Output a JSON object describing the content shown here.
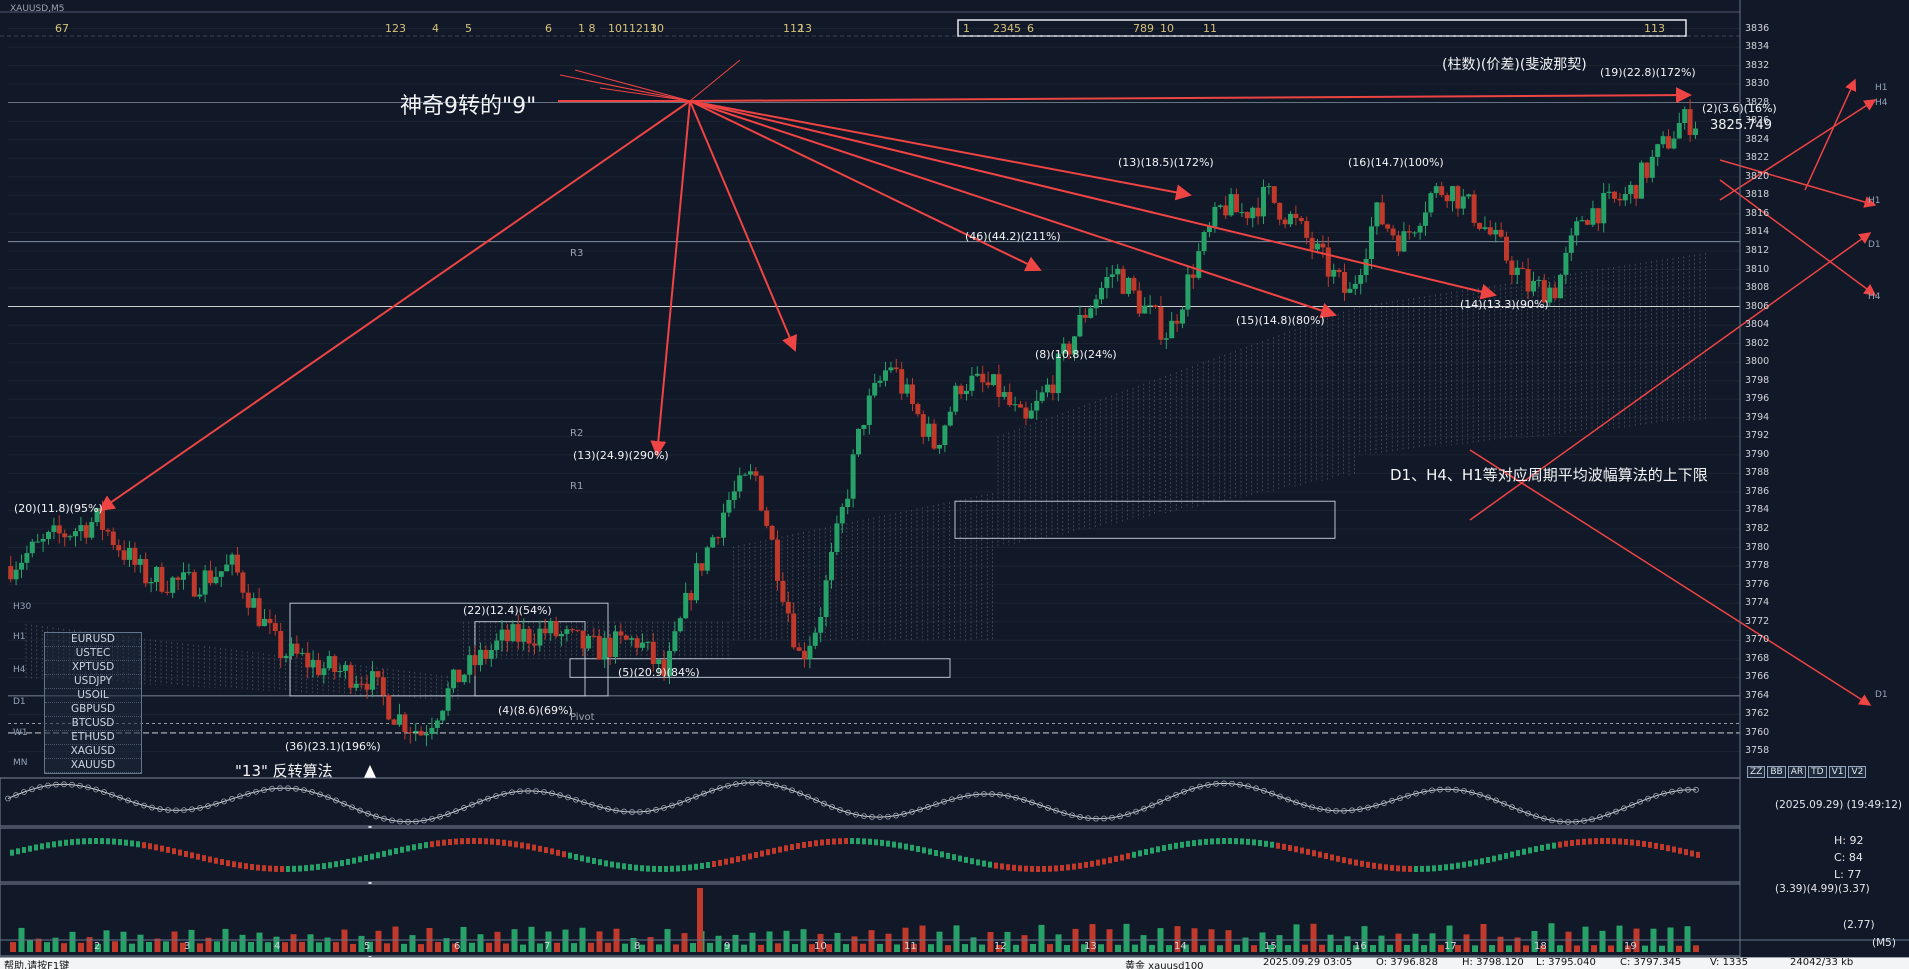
{
  "window": {
    "symbol": "XAUUSD,M5"
  },
  "top_numbers": [
    "67",
    "123",
    "4",
    "5",
    "6",
    "1 8",
    "1011213",
    "10",
    "112",
    "13",
    "1",
    "2345",
    "6",
    "789",
    "10",
    "11",
    "113"
  ],
  "annotations": {
    "magic9": "神奇9转的\"9\"",
    "header_label": "(柱数)(价差)(斐波那契)",
    "bands_label": "D1、H4、H1等对应周期平均波幅算法的上下限",
    "reversal13": "\"13\" 反转算法",
    "price_now": "3825.749",
    "wave_labels": [
      "(20)(11.8)(95%)",
      "(36)(23.1)(196%)",
      "(22)(12.4)(54%)",
      "(4)(8.6)(69%)",
      "(13)(24.9)(290%)",
      "(5)(20.9)(84%)",
      "(46)(44.2)(211%)",
      "(8)(10.8)(24%)",
      "(13)(18.5)(172%)",
      "(15)(14.8)(80%)",
      "(16)(14.7)(100%)",
      "(14)(13.3)(90%)",
      "(19)(22.8)(172%)",
      "(2)(3.6)(16%)"
    ],
    "pivot_labels": [
      "R3",
      "R2",
      "R1",
      "Pivot"
    ]
  },
  "right_axis": {
    "prices": [
      "3836",
      "3834",
      "3832",
      "3830",
      "3828",
      "3826",
      "3824",
      "3822",
      "3820",
      "3818",
      "3816",
      "3814",
      "3812",
      "3810",
      "3808",
      "3806",
      "3804",
      "3802",
      "3800",
      "3798",
      "3796",
      "3794",
      "3792",
      "3790",
      "3788",
      "3786",
      "3784",
      "3782",
      "3780",
      "3778",
      "3776",
      "3774",
      "3772",
      "3770",
      "3768",
      "3766",
      "3764",
      "3762",
      "3760",
      "3758"
    ],
    "period_labels": [
      "H1",
      "H4",
      "D1",
      "H1",
      "D1",
      "H4"
    ]
  },
  "left_axis": {
    "period_labels": [
      "H30",
      "H1",
      "H4",
      "D1",
      "W1",
      "MN"
    ]
  },
  "symbols": [
    "EURUSD",
    "USTEC",
    "XPTUSD",
    "USDJPY",
    "USOIL",
    "GBPUSD",
    "BTCUSD",
    "ETHUSD",
    "XAGUSD",
    "XAUUSD"
  ],
  "tf_buttons": [
    "ZZ",
    "BB",
    "AR",
    "TD",
    "V1",
    "V2"
  ],
  "indicators": {
    "timestamp": "(2025.09.29) (19:49:12)",
    "hcl": {
      "h": "H: 92",
      "c": "C: 84",
      "l": "L: 77"
    },
    "volume_values": "(3.39)(4.99)(3.37)",
    "volume_small": "(2.77)",
    "timeframe": "(M5)"
  },
  "x_axis_days": [
    "2",
    "3",
    "4",
    "5",
    "6",
    "7",
    "8",
    "9",
    "10",
    "11",
    "12",
    "13",
    "14",
    "15",
    "16",
    "17",
    "18",
    "19"
  ],
  "status": {
    "left": "帮助,请按F1键",
    "symbol": "黄金 xauusd100",
    "datetime": "2025.09.29 03:05",
    "open": "O: 3796.828",
    "high": "H: 3798.120",
    "low": "L: 3795.040",
    "close": "C: 3797.345",
    "volume": "V: 1335",
    "traffic": "24042/33 kb"
  },
  "colors": {
    "bull": "#26a269",
    "bear": "#c0392b",
    "arrow": "#ef4444",
    "bg": "#111827",
    "grid": "#64748b"
  },
  "chart_data": {
    "type": "candlestick",
    "symbol": "XAUUSD",
    "timeframe": "M5",
    "ylim": [
      3756,
      3838
    ],
    "x_days": [
      2,
      3,
      4,
      5,
      6,
      7,
      8,
      9,
      10,
      11,
      12,
      13,
      14,
      15,
      16,
      17,
      18,
      19
    ],
    "path_close": [
      [
        1,
        3778
      ],
      [
        1.5,
        3781
      ],
      [
        2,
        3783
      ],
      [
        2.5,
        3777
      ],
      [
        3,
        3776
      ],
      [
        3.5,
        3778
      ],
      [
        4,
        3769
      ],
      [
        4.5,
        3767
      ],
      [
        5,
        3766
      ],
      [
        5.3,
        3762
      ],
      [
        5.6,
        3760
      ],
      [
        6,
        3766
      ],
      [
        6.5,
        3770
      ],
      [
        7,
        3771
      ],
      [
        7.5,
        3769
      ],
      [
        8,
        3770
      ],
      [
        8.3,
        3766
      ],
      [
        8.6,
        3776
      ],
      [
        9,
        3785
      ],
      [
        9.3,
        3788
      ],
      [
        9.5,
        3780
      ],
      [
        9.8,
        3768
      ],
      [
        10,
        3772
      ],
      [
        10.3,
        3785
      ],
      [
        10.5,
        3794
      ],
      [
        10.8,
        3800
      ],
      [
        11,
        3796
      ],
      [
        11.3,
        3791
      ],
      [
        11.6,
        3798
      ],
      [
        12,
        3797
      ],
      [
        12.3,
        3793
      ],
      [
        12.6,
        3798
      ],
      [
        13,
        3806
      ],
      [
        13.3,
        3810
      ],
      [
        13.6,
        3806
      ],
      [
        13.9,
        3803
      ],
      [
        14.2,
        3811
      ],
      [
        14.5,
        3817
      ],
      [
        14.7,
        3816
      ],
      [
        15,
        3818
      ],
      [
        15.3,
        3815
      ],
      [
        15.6,
        3811
      ],
      [
        15.9,
        3807
      ],
      [
        16.2,
        3816
      ],
      [
        16.5,
        3813
      ],
      [
        16.8,
        3818
      ],
      [
        17,
        3819
      ],
      [
        17.3,
        3816
      ],
      [
        17.6,
        3812
      ],
      [
        17.9,
        3808
      ],
      [
        18.2,
        3808
      ],
      [
        18.5,
        3816
      ],
      [
        18.8,
        3817
      ],
      [
        19,
        3818
      ],
      [
        19.3,
        3822
      ],
      [
        19.6,
        3826
      ]
    ]
  }
}
